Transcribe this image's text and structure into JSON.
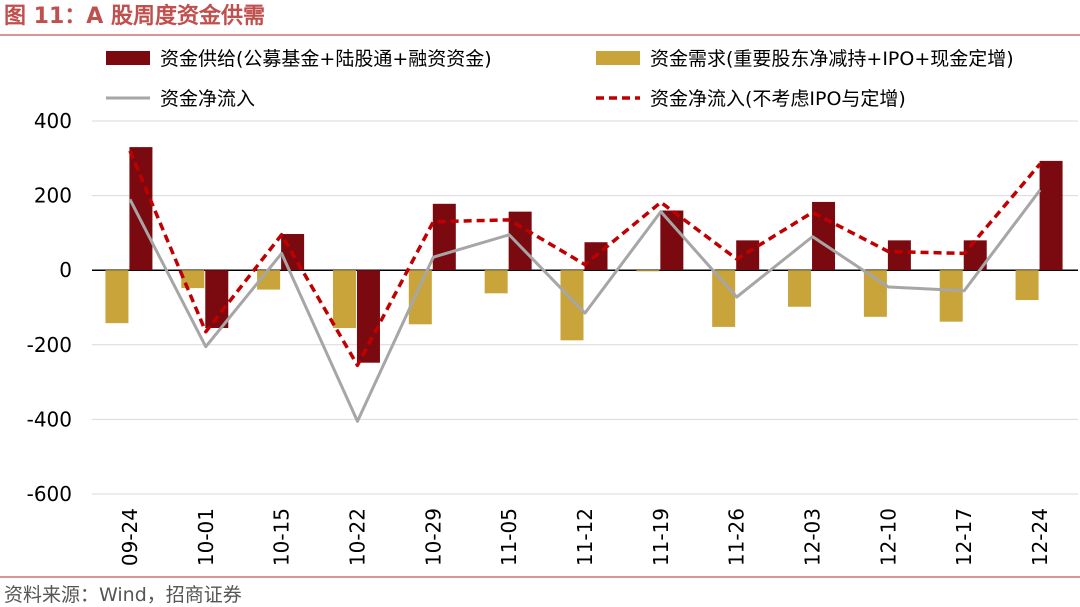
{
  "header": {
    "title": "图 11：A 股周度资金供需"
  },
  "footer": {
    "source": "资料来源：Wind，招商证券"
  },
  "colors": {
    "supply": "#7b0a10",
    "demand": "#c9a43a",
    "net": "#a6a6a6",
    "net_excl": "#c00000",
    "zero_axis": "#000000",
    "grid": "#d9d9d9"
  },
  "chart_data": {
    "type": "bar",
    "title": "A 股周度资金供需",
    "categories": [
      "09-24",
      "10-01",
      "10-15",
      "10-22",
      "10-29",
      "11-05",
      "11-12",
      "11-19",
      "11-26",
      "12-03",
      "12-10",
      "12-17",
      "12-24"
    ],
    "ylim": [
      -600,
      400
    ],
    "yticks": [
      400,
      200,
      0,
      -200,
      -400,
      -600
    ],
    "grid": true,
    "legend_position": "top",
    "series": [
      {
        "name": "资金供给(公募基金+陆股通+融资资金)",
        "kind": "bar",
        "color_key": "supply",
        "values": [
          330,
          -155,
          97,
          -248,
          178,
          157,
          75,
          160,
          80,
          183,
          80,
          80,
          293
        ]
      },
      {
        "name": "资金需求(重要股东净减持+IPO+现金定增)",
        "kind": "bar",
        "color_key": "demand",
        "values": [
          -142,
          -48,
          -52,
          -155,
          -145,
          -62,
          -188,
          -3,
          -152,
          -98,
          -125,
          -138,
          -80
        ]
      },
      {
        "name": "资金净流入",
        "kind": "line",
        "color_key": "net",
        "values": [
          190,
          -205,
          45,
          -405,
          35,
          95,
          -115,
          157,
          -72,
          90,
          -45,
          -55,
          215
        ]
      },
      {
        "name": "资金净流入(不考虑IPO与定增)",
        "kind": "dashed-line",
        "color_key": "net_excl",
        "values": [
          320,
          -165,
          95,
          -255,
          130,
          135,
          15,
          182,
          30,
          155,
          50,
          45,
          285
        ]
      }
    ]
  }
}
